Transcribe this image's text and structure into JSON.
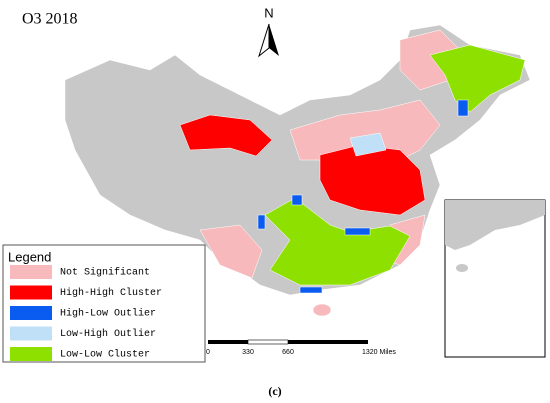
{
  "header": {
    "title": "O3 2018",
    "north": "N"
  },
  "legend": {
    "title": "Legend",
    "items": [
      {
        "label": "Not Significant",
        "color": "#f7b9bb"
      },
      {
        "label": "High-High Cluster",
        "color": "#ff0000"
      },
      {
        "label": "High-Low Outlier",
        "color": "#0a5cf0"
      },
      {
        "label": "Low-High Outlier",
        "color": "#bfe0f7"
      },
      {
        "label": "Low-Low Cluster",
        "color": "#8ee000"
      }
    ]
  },
  "scale_bar": {
    "labels": [
      "0",
      "330",
      "660",
      "1320 Miles"
    ]
  },
  "caption": "(c)"
}
